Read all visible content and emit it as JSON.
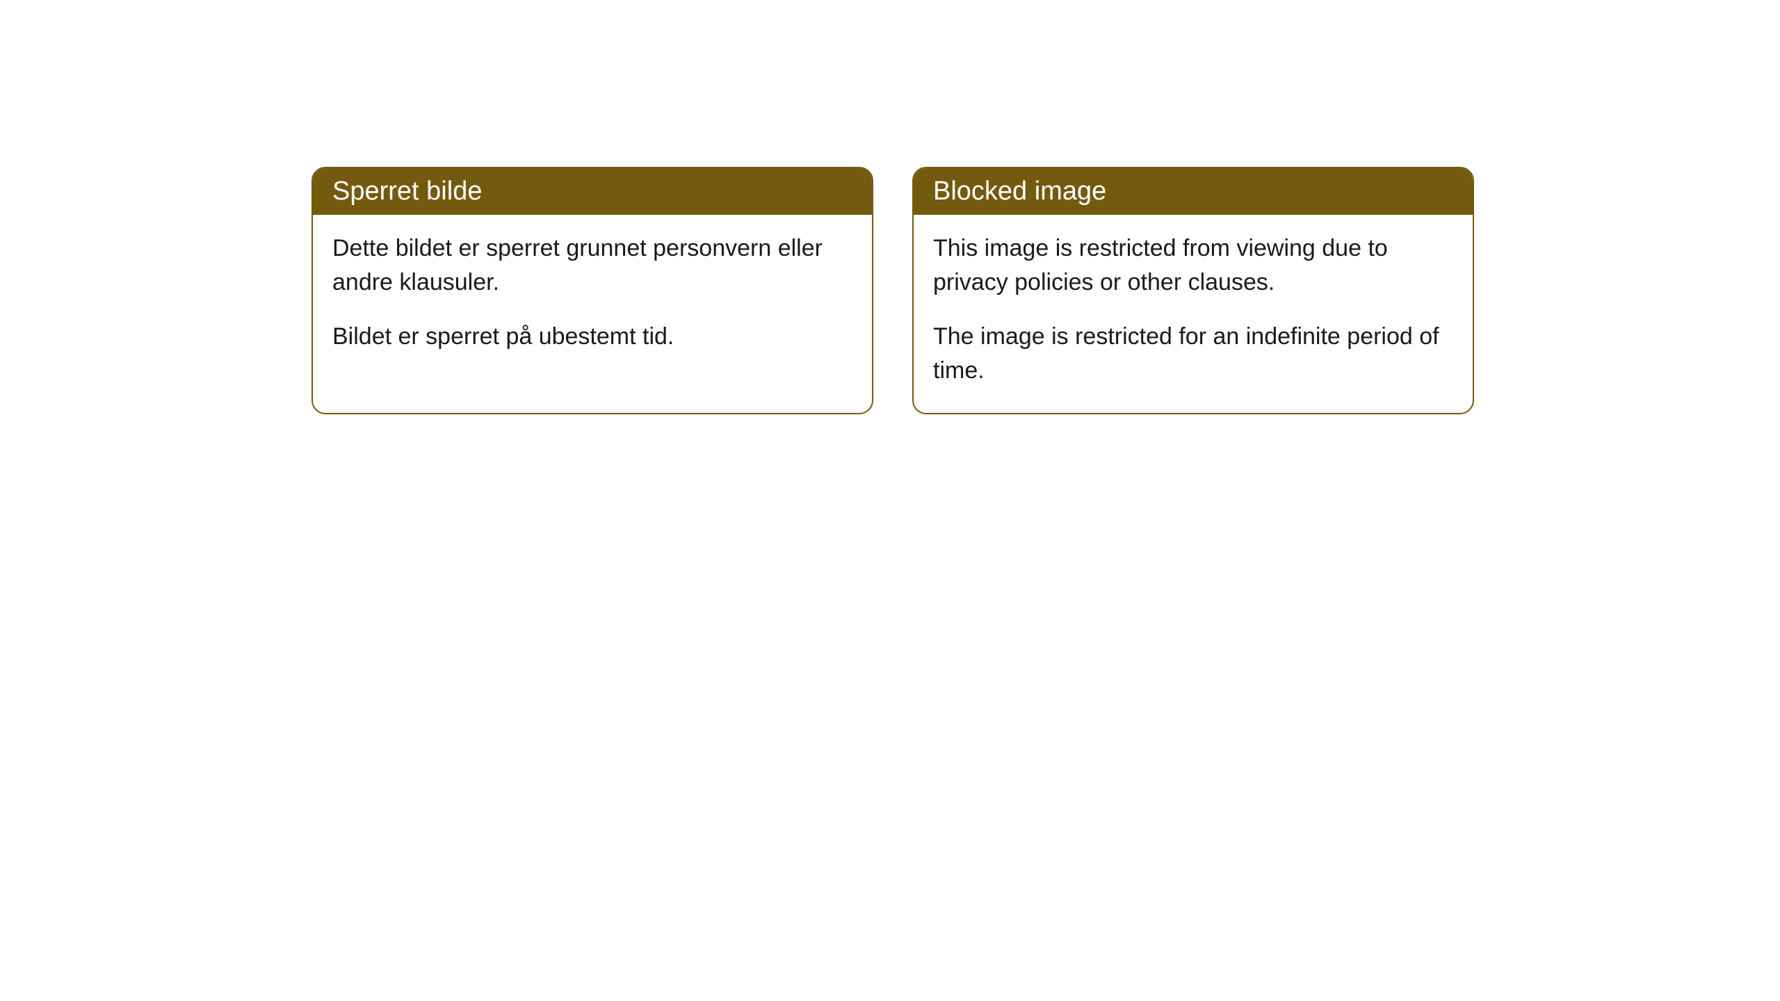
{
  "cards": [
    {
      "title": "Sperret bilde",
      "paragraph1": "Dette bildet er sperret grunnet personvern eller andre klausuler.",
      "paragraph2": "Bildet er sperret på ubestemt tid."
    },
    {
      "title": "Blocked image",
      "paragraph1": "This image is restricted from viewing due to privacy policies or other clauses.",
      "paragraph2": "The image is restricted for an indefinite period of time."
    }
  ],
  "styles": {
    "header_bg_color": "#735a0f",
    "header_text_color": "#ffffff",
    "border_color": "#735a0f",
    "body_text_color": "#1a1a1a",
    "page_bg_color": "#ffffff",
    "border_radius": 20,
    "title_fontsize": 38,
    "body_fontsize": 34
  }
}
